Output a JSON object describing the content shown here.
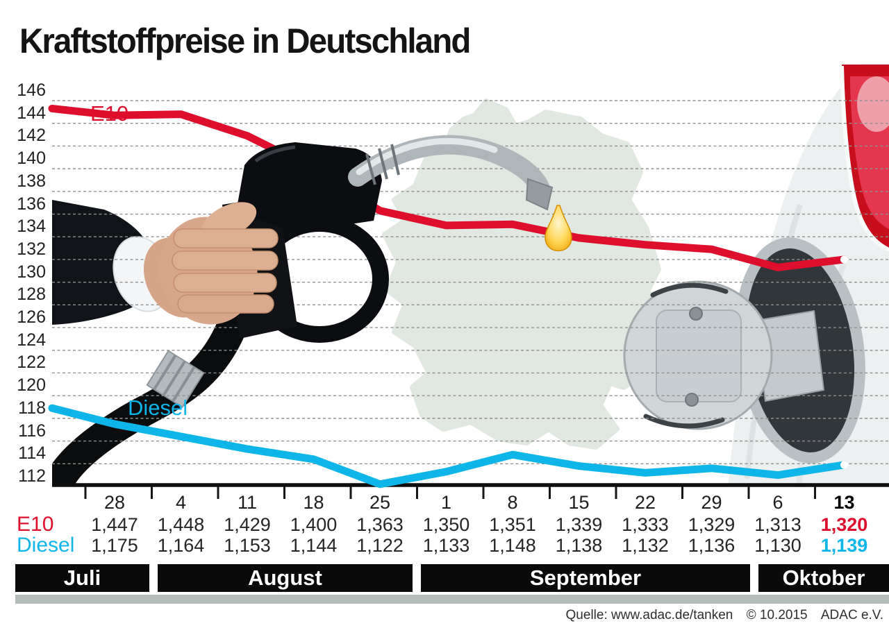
{
  "title": "Kraftstoffpreise in Deutschland",
  "source_line": {
    "label": "Quelle: www.adac.de/tanken",
    "copyright": "© 10.2015",
    "organization": "ADAC e.V."
  },
  "chart_data": {
    "type": "line",
    "title": "Kraftstoffpreise in Deutschland",
    "y_axis": {
      "min": 112,
      "max": 146,
      "step": 2,
      "gridlines": "dashed",
      "tick_labels": [
        "146",
        "144",
        "142",
        "140",
        "138",
        "136",
        "134",
        "132",
        "130",
        "128",
        "126",
        "124",
        "122",
        "120",
        "118",
        "116",
        "114",
        "112"
      ]
    },
    "x_axis": {
      "tick_labels": [
        "28",
        "4",
        "11",
        "18",
        "25",
        "1",
        "8",
        "15",
        "22",
        "29",
        "6",
        "13"
      ],
      "last_label_bold": true
    },
    "months": [
      {
        "label": "Juli",
        "columns": [
          0
        ]
      },
      {
        "label": "August",
        "columns": [
          1,
          2,
          3,
          4
        ]
      },
      {
        "label": "September",
        "columns": [
          5,
          6,
          7,
          8,
          9
        ]
      },
      {
        "label": "Oktober",
        "columns": [
          10,
          11
        ]
      }
    ],
    "series": [
      {
        "name": "E10",
        "color": "#dd0f2d",
        "values": [
          144.7,
          144.8,
          142.9,
          140.0,
          136.3,
          135.0,
          135.1,
          133.9,
          133.3,
          132.9,
          131.3,
          132.0
        ],
        "table_values": [
          "1,447",
          "1,448",
          "1,429",
          "1,400",
          "1,363",
          "1,350",
          "1,351",
          "1,339",
          "1,333",
          "1,329",
          "1,313",
          "1,320"
        ],
        "lead_in_value": 145.3
      },
      {
        "name": "Diesel",
        "color": "#0db5e8",
        "values": [
          117.5,
          116.4,
          115.3,
          114.4,
          112.2,
          113.3,
          114.8,
          113.8,
          113.2,
          113.6,
          113.0,
          113.9
        ],
        "table_values": [
          "1,175",
          "1,164",
          "1,153",
          "1,144",
          "1,122",
          "1,133",
          "1,148",
          "1,138",
          "1,132",
          "1,136",
          "1,130",
          "1,139"
        ],
        "lead_in_value": 118.9
      }
    ],
    "highlight_last_column": true
  },
  "decorations": [
    "germany-map",
    "hand-with-fuel-nozzle",
    "fuel-hose",
    "fuel-drop",
    "car-rear-with-open-fuel-cap",
    "taillight"
  ],
  "colors": {
    "e10": "#dd0f2d",
    "diesel": "#0db5e8",
    "grid": "#909090",
    "month_bar_bg": "#0a0a0a",
    "month_bar_text": "#ffffff",
    "footer_strip": "#b3bcb7",
    "map_fill": "#e1e7e1",
    "drop": "#f5a800"
  }
}
